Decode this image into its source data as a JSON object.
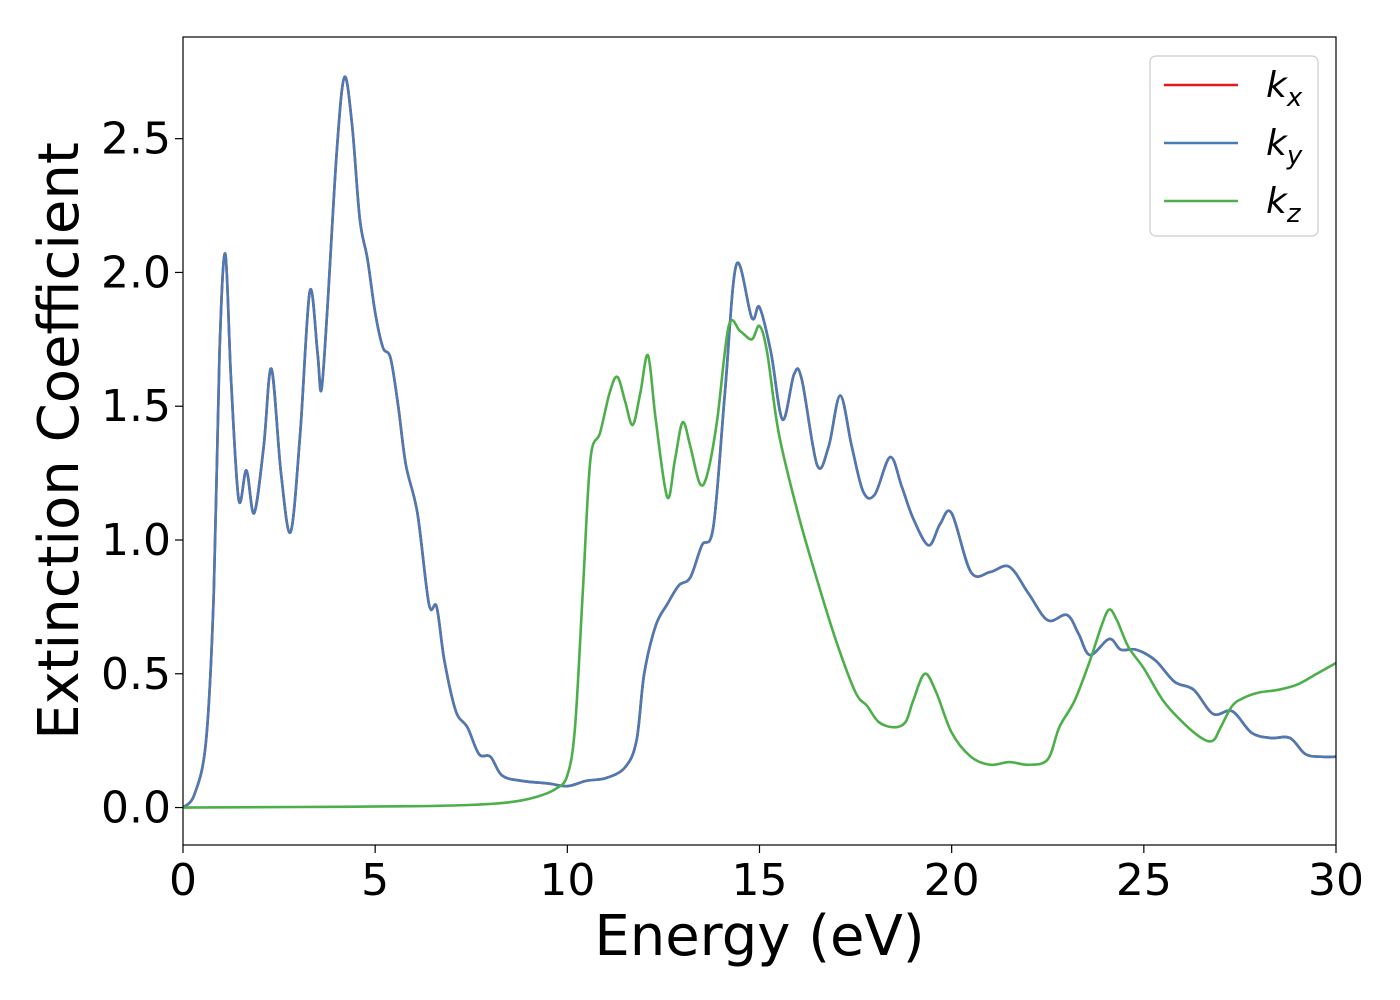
{
  "chart_data": {
    "type": "line",
    "title": "",
    "xlabel": "Energy (eV)",
    "ylabel": "Extinction Coefficient",
    "xlim": [
      0,
      30
    ],
    "ylim": [
      -0.14,
      2.88
    ],
    "xticks": [
      0,
      5,
      10,
      15,
      20,
      25,
      30
    ],
    "xtick_labels": [
      "0",
      "5",
      "10",
      "15",
      "20",
      "25",
      "30"
    ],
    "yticks": [
      0.0,
      0.5,
      1.0,
      1.5,
      2.0,
      2.5
    ],
    "ytick_labels": [
      "0.0",
      "0.5",
      "1.0",
      "1.5",
      "2.0",
      "2.5"
    ],
    "grid": false,
    "legend_position": "top-right",
    "series": [
      {
        "name": "k_x",
        "label_main": "k",
        "label_sub": "x",
        "color": "#e41a1c",
        "points": [
          [
            0,
            0
          ],
          [
            0.3,
            0.05
          ],
          [
            0.6,
            0.25
          ],
          [
            0.8,
            0.8
          ],
          [
            0.95,
            1.7
          ],
          [
            1.1,
            2.07
          ],
          [
            1.25,
            1.6
          ],
          [
            1.45,
            1.15
          ],
          [
            1.65,
            1.26
          ],
          [
            1.85,
            1.1
          ],
          [
            2.1,
            1.35
          ],
          [
            2.3,
            1.64
          ],
          [
            2.55,
            1.25
          ],
          [
            2.8,
            1.03
          ],
          [
            3.05,
            1.4
          ],
          [
            3.3,
            1.93
          ],
          [
            3.5,
            1.7
          ],
          [
            3.6,
            1.56
          ],
          [
            3.75,
            1.85
          ],
          [
            4.0,
            2.45
          ],
          [
            4.2,
            2.73
          ],
          [
            4.4,
            2.55
          ],
          [
            4.6,
            2.2
          ],
          [
            4.8,
            2.05
          ],
          [
            5.0,
            1.85
          ],
          [
            5.2,
            1.72
          ],
          [
            5.4,
            1.68
          ],
          [
            5.6,
            1.5
          ],
          [
            5.8,
            1.28
          ],
          [
            6.1,
            1.1
          ],
          [
            6.4,
            0.76
          ],
          [
            6.6,
            0.75
          ],
          [
            6.8,
            0.55
          ],
          [
            7.1,
            0.36
          ],
          [
            7.4,
            0.3
          ],
          [
            7.7,
            0.2
          ],
          [
            8.0,
            0.19
          ],
          [
            8.3,
            0.12
          ],
          [
            8.8,
            0.1
          ],
          [
            9.5,
            0.09
          ],
          [
            10.0,
            0.08
          ],
          [
            10.5,
            0.1
          ],
          [
            11.0,
            0.11
          ],
          [
            11.5,
            0.15
          ],
          [
            11.8,
            0.25
          ],
          [
            12.0,
            0.5
          ],
          [
            12.3,
            0.68
          ],
          [
            12.6,
            0.76
          ],
          [
            12.9,
            0.83
          ],
          [
            13.2,
            0.86
          ],
          [
            13.5,
            0.98
          ],
          [
            13.8,
            1.05
          ],
          [
            14.1,
            1.55
          ],
          [
            14.4,
            2.03
          ],
          [
            14.8,
            1.83
          ],
          [
            15.0,
            1.87
          ],
          [
            15.3,
            1.7
          ],
          [
            15.6,
            1.45
          ],
          [
            15.9,
            1.62
          ],
          [
            16.1,
            1.6
          ],
          [
            16.5,
            1.28
          ],
          [
            16.8,
            1.35
          ],
          [
            17.1,
            1.54
          ],
          [
            17.4,
            1.35
          ],
          [
            17.7,
            1.18
          ],
          [
            18.0,
            1.17
          ],
          [
            18.4,
            1.31
          ],
          [
            18.7,
            1.2
          ],
          [
            19.0,
            1.08
          ],
          [
            19.4,
            0.98
          ],
          [
            19.7,
            1.06
          ],
          [
            20.0,
            1.1
          ],
          [
            20.5,
            0.88
          ],
          [
            21.0,
            0.88
          ],
          [
            21.5,
            0.9
          ],
          [
            22.0,
            0.8
          ],
          [
            22.5,
            0.7
          ],
          [
            23.0,
            0.72
          ],
          [
            23.3,
            0.65
          ],
          [
            23.6,
            0.57
          ],
          [
            24.1,
            0.63
          ],
          [
            24.4,
            0.59
          ],
          [
            24.8,
            0.59
          ],
          [
            25.3,
            0.55
          ],
          [
            25.8,
            0.47
          ],
          [
            26.3,
            0.44
          ],
          [
            26.8,
            0.35
          ],
          [
            27.3,
            0.36
          ],
          [
            27.8,
            0.28
          ],
          [
            28.3,
            0.26
          ],
          [
            28.8,
            0.26
          ],
          [
            29.2,
            0.2
          ],
          [
            29.6,
            0.19
          ],
          [
            30.0,
            0.19
          ]
        ]
      },
      {
        "name": "k_y",
        "label_main": "k",
        "label_sub": "y",
        "color": "#4a7bb4",
        "points": [
          [
            0,
            0
          ],
          [
            0.3,
            0.05
          ],
          [
            0.6,
            0.25
          ],
          [
            0.8,
            0.8
          ],
          [
            0.95,
            1.7
          ],
          [
            1.1,
            2.07
          ],
          [
            1.25,
            1.6
          ],
          [
            1.45,
            1.15
          ],
          [
            1.65,
            1.26
          ],
          [
            1.85,
            1.1
          ],
          [
            2.1,
            1.35
          ],
          [
            2.3,
            1.64
          ],
          [
            2.55,
            1.25
          ],
          [
            2.8,
            1.03
          ],
          [
            3.05,
            1.4
          ],
          [
            3.3,
            1.93
          ],
          [
            3.5,
            1.7
          ],
          [
            3.6,
            1.56
          ],
          [
            3.75,
            1.85
          ],
          [
            4.0,
            2.45
          ],
          [
            4.2,
            2.73
          ],
          [
            4.4,
            2.55
          ],
          [
            4.6,
            2.2
          ],
          [
            4.8,
            2.05
          ],
          [
            5.0,
            1.85
          ],
          [
            5.2,
            1.72
          ],
          [
            5.4,
            1.68
          ],
          [
            5.6,
            1.5
          ],
          [
            5.8,
            1.28
          ],
          [
            6.1,
            1.1
          ],
          [
            6.4,
            0.76
          ],
          [
            6.6,
            0.75
          ],
          [
            6.8,
            0.55
          ],
          [
            7.1,
            0.36
          ],
          [
            7.4,
            0.3
          ],
          [
            7.7,
            0.2
          ],
          [
            8.0,
            0.19
          ],
          [
            8.3,
            0.12
          ],
          [
            8.8,
            0.1
          ],
          [
            9.5,
            0.09
          ],
          [
            10.0,
            0.08
          ],
          [
            10.5,
            0.1
          ],
          [
            11.0,
            0.11
          ],
          [
            11.5,
            0.15
          ],
          [
            11.8,
            0.25
          ],
          [
            12.0,
            0.5
          ],
          [
            12.3,
            0.68
          ],
          [
            12.6,
            0.76
          ],
          [
            12.9,
            0.83
          ],
          [
            13.2,
            0.86
          ],
          [
            13.5,
            0.98
          ],
          [
            13.8,
            1.05
          ],
          [
            14.1,
            1.55
          ],
          [
            14.4,
            2.03
          ],
          [
            14.8,
            1.83
          ],
          [
            15.0,
            1.87
          ],
          [
            15.3,
            1.7
          ],
          [
            15.6,
            1.45
          ],
          [
            15.9,
            1.62
          ],
          [
            16.1,
            1.6
          ],
          [
            16.5,
            1.28
          ],
          [
            16.8,
            1.35
          ],
          [
            17.1,
            1.54
          ],
          [
            17.4,
            1.35
          ],
          [
            17.7,
            1.18
          ],
          [
            18.0,
            1.17
          ],
          [
            18.4,
            1.31
          ],
          [
            18.7,
            1.2
          ],
          [
            19.0,
            1.08
          ],
          [
            19.4,
            0.98
          ],
          [
            19.7,
            1.06
          ],
          [
            20.0,
            1.1
          ],
          [
            20.5,
            0.88
          ],
          [
            21.0,
            0.88
          ],
          [
            21.5,
            0.9
          ],
          [
            22.0,
            0.8
          ],
          [
            22.5,
            0.7
          ],
          [
            23.0,
            0.72
          ],
          [
            23.3,
            0.65
          ],
          [
            23.6,
            0.57
          ],
          [
            24.1,
            0.63
          ],
          [
            24.4,
            0.59
          ],
          [
            24.8,
            0.59
          ],
          [
            25.3,
            0.55
          ],
          [
            25.8,
            0.47
          ],
          [
            26.3,
            0.44
          ],
          [
            26.8,
            0.35
          ],
          [
            27.3,
            0.36
          ],
          [
            27.8,
            0.28
          ],
          [
            28.3,
            0.26
          ],
          [
            28.8,
            0.26
          ],
          [
            29.2,
            0.2
          ],
          [
            29.6,
            0.19
          ],
          [
            30.0,
            0.19
          ]
        ]
      },
      {
        "name": "k_z",
        "label_main": "k",
        "label_sub": "z",
        "color": "#4daf4a",
        "points": [
          [
            0,
            0
          ],
          [
            3,
            0.002
          ],
          [
            6,
            0.005
          ],
          [
            7.5,
            0.01
          ],
          [
            8.5,
            0.02
          ],
          [
            9.2,
            0.04
          ],
          [
            9.7,
            0.07
          ],
          [
            10.0,
            0.12
          ],
          [
            10.2,
            0.3
          ],
          [
            10.4,
            0.8
          ],
          [
            10.6,
            1.3
          ],
          [
            10.85,
            1.4
          ],
          [
            11.1,
            1.55
          ],
          [
            11.3,
            1.61
          ],
          [
            11.5,
            1.52
          ],
          [
            11.7,
            1.43
          ],
          [
            11.9,
            1.55
          ],
          [
            12.1,
            1.69
          ],
          [
            12.3,
            1.45
          ],
          [
            12.6,
            1.16
          ],
          [
            12.8,
            1.3
          ],
          [
            13.0,
            1.44
          ],
          [
            13.2,
            1.35
          ],
          [
            13.45,
            1.21
          ],
          [
            13.65,
            1.25
          ],
          [
            13.9,
            1.45
          ],
          [
            14.2,
            1.8
          ],
          [
            14.5,
            1.78
          ],
          [
            14.8,
            1.75
          ],
          [
            15.0,
            1.8
          ],
          [
            15.2,
            1.7
          ],
          [
            15.5,
            1.4
          ],
          [
            16.0,
            1.1
          ],
          [
            16.5,
            0.85
          ],
          [
            17.0,
            0.62
          ],
          [
            17.5,
            0.43
          ],
          [
            17.8,
            0.38
          ],
          [
            18.1,
            0.32
          ],
          [
            18.5,
            0.3
          ],
          [
            18.8,
            0.32
          ],
          [
            19.0,
            0.4
          ],
          [
            19.3,
            0.5
          ],
          [
            19.6,
            0.43
          ],
          [
            20.0,
            0.28
          ],
          [
            20.5,
            0.19
          ],
          [
            21.0,
            0.16
          ],
          [
            21.5,
            0.17
          ],
          [
            22.0,
            0.16
          ],
          [
            22.5,
            0.18
          ],
          [
            22.8,
            0.3
          ],
          [
            23.2,
            0.4
          ],
          [
            23.6,
            0.55
          ],
          [
            23.9,
            0.68
          ],
          [
            24.1,
            0.74
          ],
          [
            24.3,
            0.7
          ],
          [
            24.6,
            0.6
          ],
          [
            25.0,
            0.52
          ],
          [
            25.5,
            0.4
          ],
          [
            26.0,
            0.32
          ],
          [
            26.5,
            0.26
          ],
          [
            26.8,
            0.25
          ],
          [
            27.0,
            0.3
          ],
          [
            27.3,
            0.38
          ],
          [
            27.6,
            0.41
          ],
          [
            28.0,
            0.43
          ],
          [
            28.5,
            0.44
          ],
          [
            29.0,
            0.46
          ],
          [
            29.5,
            0.5
          ],
          [
            30.0,
            0.54
          ]
        ]
      }
    ]
  }
}
